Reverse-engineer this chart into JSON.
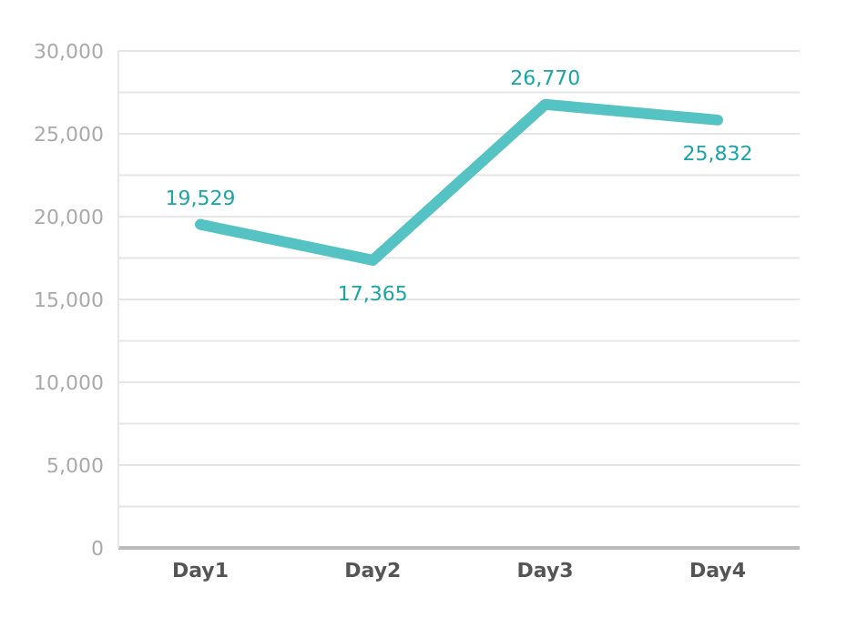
{
  "chart_data": {
    "type": "line",
    "categories": [
      "Day1",
      "Day2",
      "Day3",
      "Day4"
    ],
    "series": [
      {
        "color": "#55c3c3",
        "values": [
          19529,
          17365,
          26770,
          25832
        ],
        "value_labels": [
          "19,529",
          "17,365",
          "26,770",
          "25,832"
        ]
      }
    ],
    "ylim": [
      0,
      30000
    ],
    "yticks": [
      0,
      {
        "value": 2500,
        "label": null
      },
      {
        "value": 5000,
        "label": "5,000"
      },
      {
        "value": 7500,
        "label": null
      },
      {
        "value": 10000,
        "label": "10,000"
      },
      {
        "value": 12500,
        "label": null
      },
      {
        "value": 15000,
        "label": "15,000"
      },
      {
        "value": 17500,
        "label": null
      },
      {
        "value": 20000,
        "label": "20,000"
      },
      {
        "value": 22500,
        "label": null
      },
      {
        "value": 25000,
        "label": "25,000"
      },
      {
        "value": 27500,
        "label": null
      },
      {
        "value": 30000,
        "label": "30,000"
      }
    ],
    "grid": "y",
    "marker": "none",
    "line_style": "solid"
  }
}
